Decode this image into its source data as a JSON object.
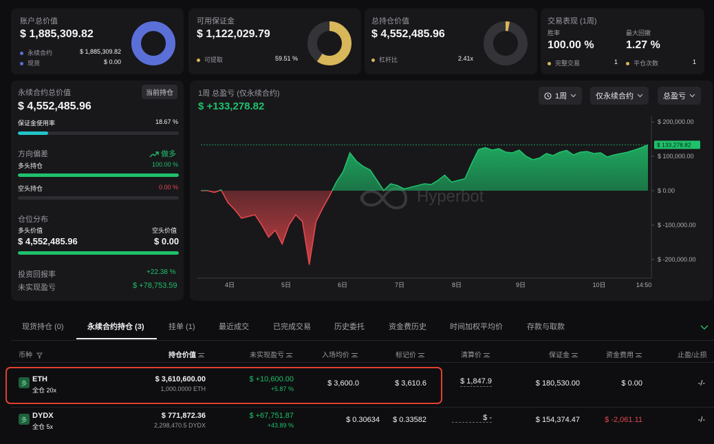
{
  "colors": {
    "accent_green": "#1fc16b",
    "red": "#e5484d",
    "blue": "#5b6fd8",
    "gold": "#d8b65a",
    "cyan": "#23c3c9",
    "highlight": "#e2412f"
  },
  "cards": {
    "account": {
      "title": "账户总价值",
      "value": "$ 1,885,309.82",
      "rows": [
        {
          "label": "永续合约",
          "value": "$ 1,885,309.82"
        },
        {
          "label": "现货",
          "value": "$ 0.00"
        }
      ],
      "donut_fraction": 1.0
    },
    "margin": {
      "title": "可用保证金",
      "value": "$ 1,122,029.79",
      "rows": [
        {
          "label": "可提取",
          "value": "59.51 %"
        }
      ],
      "donut_fraction": 0.5951
    },
    "position": {
      "title": "总持仓价值",
      "value": "$ 4,552,485.96",
      "rows": [
        {
          "label": "杠杆比",
          "value": "2.41x"
        }
      ],
      "donut_fraction": 0.03
    },
    "performance": {
      "title": "交易表现 (1周)",
      "winrate_label": "胜率",
      "winrate": "100.00 %",
      "drawdown_label": "最大回撤",
      "drawdown": "1.27 %",
      "closed_label": "完整交易",
      "closed_value": "1",
      "flat_label": "平仓次数",
      "flat_value": "1"
    }
  },
  "left_panel": {
    "title": "永续合约总价值",
    "badge": "当前持仓",
    "value": "$ 4,552,485.96",
    "margin_usage_label": "保证金使用率",
    "margin_usage_value": "18.67 %",
    "margin_usage_fraction": 0.1867,
    "direction_label": "方向偏差",
    "direction_value": "做多",
    "long_label": "多头持仓",
    "long_value": "100.00 %",
    "long_fraction": 1.0,
    "short_label": "空头持仓",
    "short_value": "0.00 %",
    "short_fraction": 0.0,
    "dist_label": "仓位分布",
    "long_value_label": "多头价值",
    "short_value_label": "空头价值",
    "long_amount": "$ 4,552,485.96",
    "short_amount": "$ 0.00",
    "roi_label": "投资回报率",
    "roi_value": "+22.38 %",
    "upnl_label": "未实现盈亏",
    "upnl_value": "$ +78,753.59"
  },
  "chart_header": {
    "title": "1周 总盈亏 (仅永续合约)",
    "value": "$ +133,278.82",
    "btn_period": "1周",
    "btn_scope": "仅永续合约",
    "btn_metric": "总盈亏",
    "watermark": "Hyperbot"
  },
  "chart_data": {
    "type": "area",
    "x_ticks": [
      "4日",
      "5日",
      "6日",
      "7日",
      "8日",
      "9日",
      "10日",
      "14:50"
    ],
    "y_ticks": [
      "$ 200,000.00",
      "$ 100,000.00",
      "$ 0.00",
      "$ -100,000.00",
      "$ -200,000.00"
    ],
    "ylim": [
      -250000,
      200000
    ],
    "last_value_label": "$ 133,278.82",
    "last_value": 133278.82,
    "series": [
      {
        "values": [
          0,
          0,
          -5000,
          2000,
          -35000,
          -55000,
          -80000,
          -75000,
          -70000,
          -100000,
          -135000,
          -115000,
          -155000,
          -100000,
          -70000,
          -90000,
          -215000,
          -90000,
          -50000,
          -15000,
          25000,
          55000,
          110000,
          85000,
          70000,
          60000,
          30000,
          0,
          20000,
          15000,
          5000,
          10000,
          15000,
          20000,
          18000,
          30000,
          45000,
          25000,
          30000,
          35000,
          80000,
          120000,
          125000,
          118000,
          122000,
          112000,
          110000,
          118000,
          100000,
          90000,
          95000,
          108000,
          102000,
          112000,
          117000,
          104000,
          112000,
          114000,
          108000,
          110000,
          98000,
          104000,
          108000,
          112000,
          118000,
          125000,
          133278
        ]
      }
    ]
  },
  "tabs": [
    {
      "label": "现货持仓 (0)"
    },
    {
      "label": "永续合约持仓 (3)"
    },
    {
      "label": "挂单 (1)"
    },
    {
      "label": "最近成交"
    },
    {
      "label": "已完成交易"
    },
    {
      "label": "历史委托"
    },
    {
      "label": "资金费历史"
    },
    {
      "label": "时间加权平均价"
    },
    {
      "label": "存款与取款"
    }
  ],
  "table": {
    "headers": {
      "coin": "币种",
      "value": "持仓价值",
      "upnl": "未实现盈亏",
      "entry": "入场均价",
      "mark": "标记价",
      "liq": "清算价",
      "margin": "保证金",
      "funding": "资金费用",
      "tpsl": "止盈/止损"
    },
    "rows": [
      {
        "coin": "ETH",
        "sub": "全仓 20x",
        "value": "$ 3,610,600.00",
        "value_sub": "1,000.0000 ETH",
        "upnl": "$ +10,600.00",
        "upnl_pct": "+5.87 %",
        "entry": "$ 3,600.0",
        "mark": "$ 3,610.6",
        "liq": "$ 1,847.9",
        "margin": "$ 180,530.00",
        "funding": "$ 0.00",
        "tpsl": "-/-"
      },
      {
        "coin": "DYDX",
        "sub": "全仓 5x",
        "value": "$ 771,872.36",
        "value_sub": "2,298,470.5 DYDX",
        "upnl": "$ +67,751.87",
        "upnl_pct": "+43.89 %",
        "entry": "$ 0.30634",
        "mark": "$ 0.33582",
        "liq": "$ -",
        "margin": "$ 154,374.47",
        "funding": "$ -2,061.11",
        "tpsl": "-/-"
      }
    ]
  }
}
